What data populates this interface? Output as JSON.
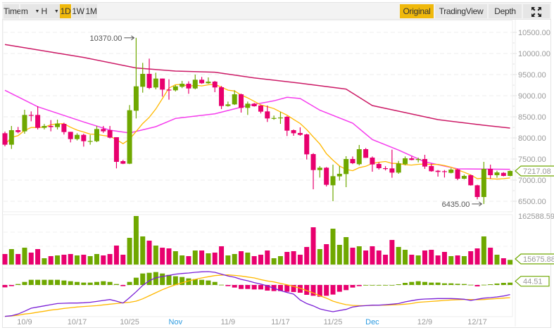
{
  "toolbar": {
    "left": [
      {
        "label": "Time",
        "active": false
      },
      {
        "label": "m",
        "active": false,
        "dropdown": true
      },
      {
        "label": "H",
        "active": false,
        "dropdown": true
      },
      {
        "label": "1D",
        "active": true
      },
      {
        "label": "1W",
        "active": false
      },
      {
        "label": "1M",
        "active": false
      }
    ],
    "right": [
      {
        "label": "Original",
        "active": true
      },
      {
        "label": "TradingView",
        "active": false
      },
      {
        "label": "Depth",
        "active": false
      }
    ],
    "fullscreen_icon": "expand-arrows-icon"
  },
  "colors": {
    "up": "#6fa800",
    "down": "#e8006e",
    "accent": "#f0b90b",
    "ma_short": "#ffb800",
    "ma_mid": "#f53ded",
    "ma_long": "#cc1a66",
    "dif": "#7a1fd6",
    "dea": "#ffb800"
  },
  "chart_data": {
    "type": "candlestick",
    "interval": "1D",
    "price_axis": {
      "ticks": [
        "6500.00",
        "7000.00",
        "7500.00",
        "8000.00",
        "8500.00",
        "9000.00",
        "9500.00",
        "10000.00",
        "10500.00"
      ],
      "range": [
        6300,
        10560
      ]
    },
    "x_labels": [
      {
        "label": "10/9",
        "index": 3,
        "month": false
      },
      {
        "label": "10/17",
        "index": 11,
        "month": false
      },
      {
        "label": "10/25",
        "index": 19,
        "month": false
      },
      {
        "label": "Nov",
        "index": 26,
        "month": true
      },
      {
        "label": "11/9",
        "index": 34,
        "month": false
      },
      {
        "label": "11/17",
        "index": 42,
        "month": false
      },
      {
        "label": "11/25",
        "index": 50,
        "month": false
      },
      {
        "label": "Dec",
        "index": 56,
        "month": true
      },
      {
        "label": "12/9",
        "index": 64,
        "month": false
      },
      {
        "label": "12/17",
        "index": 72,
        "month": false
      }
    ],
    "ohlc": [
      [
        8111,
        8150,
        7800,
        7839
      ],
      [
        7839,
        8283,
        7739,
        8183
      ],
      [
        8183,
        8260,
        8110,
        8139
      ],
      [
        8156,
        8667,
        8100,
        8544
      ],
      [
        8544,
        8628,
        8394,
        8540
      ],
      [
        8544,
        8750,
        8200,
        8239
      ],
      [
        8239,
        8330,
        8200,
        8283
      ],
      [
        8283,
        8422,
        8156,
        8256
      ],
      [
        8256,
        8433,
        8200,
        8339
      ],
      [
        8333,
        8360,
        8080,
        8139
      ],
      [
        8144,
        8144,
        7894,
        7972
      ],
      [
        7972,
        8110,
        7940,
        8072
      ],
      [
        8072,
        8100,
        7794,
        7922
      ],
      [
        7922,
        8072,
        7839,
        7928
      ],
      [
        7922,
        8283,
        7900,
        8211
      ],
      [
        8211,
        8283,
        8120,
        8156
      ],
      [
        8183,
        8283,
        7989,
        8006
      ],
      [
        8017,
        8017,
        7278,
        7433
      ],
      [
        7450,
        7480,
        7380,
        7389
      ],
      [
        7389,
        8778,
        7380,
        8656
      ],
      [
        8644,
        10370,
        8461,
        9222
      ],
      [
        9211,
        9778,
        9072,
        9517
      ],
      [
        9517,
        9878,
        9156,
        9183
      ],
      [
        9194,
        9544,
        9150,
        9406
      ],
      [
        9406,
        9406,
        8978,
        9144
      ],
      [
        9144,
        9389,
        8906,
        9128
      ],
      [
        9128,
        9250,
        9100,
        9222
      ],
      [
        9211,
        9350,
        9180,
        9283
      ],
      [
        9283,
        9340,
        9045,
        9172
      ],
      [
        9172,
        9500,
        9150,
        9378
      ],
      [
        9378,
        9445,
        9280,
        9295
      ],
      [
        9295,
        9433,
        9280,
        9333
      ],
      [
        9333,
        9350,
        9083,
        9195
      ],
      [
        9200,
        9230,
        8683,
        8756
      ],
      [
        8756,
        8860,
        8740,
        8794
      ],
      [
        8794,
        9128,
        8780,
        9033
      ],
      [
        9033,
        9050,
        8600,
        8711
      ],
      [
        8711,
        8860,
        8545,
        8811
      ],
      [
        8811,
        8830,
        8740,
        8750
      ],
      [
        8767,
        8780,
        8580,
        8622
      ],
      [
        8628,
        8767,
        8378,
        8461
      ],
      [
        8461,
        8530,
        8430,
        8472
      ],
      [
        8472,
        8617,
        8333,
        8483
      ],
      [
        8500,
        8520,
        8045,
        8172
      ],
      [
        8183,
        8200,
        8050,
        8111
      ],
      [
        8117,
        8250,
        8050,
        8072
      ],
      [
        8083,
        8100,
        7489,
        7611
      ],
      [
        7617,
        7640,
        6783,
        7239
      ],
      [
        7239,
        7333,
        7060,
        7294
      ],
      [
        7294,
        7310,
        6850,
        6889
      ],
      [
        6878,
        7367,
        6500,
        7094
      ],
      [
        7089,
        7333,
        6989,
        7150
      ],
      [
        7144,
        7567,
        6833,
        7500
      ],
      [
        7500,
        7560,
        7380,
        7400
      ],
      [
        7378,
        7833,
        7350,
        7733
      ],
      [
        7733,
        7760,
        7528,
        7528
      ],
      [
        7533,
        7560,
        7200,
        7372
      ],
      [
        7383,
        7420,
        7250,
        7283
      ],
      [
        7283,
        7330,
        7230,
        7278
      ],
      [
        7278,
        7722,
        7056,
        7178
      ],
      [
        7178,
        7456,
        7150,
        7394
      ],
      [
        7378,
        7560,
        7350,
        7517
      ],
      [
        7517,
        7560,
        7470,
        7478
      ],
      [
        7478,
        7530,
        7420,
        7500
      ],
      [
        7500,
        7600,
        7267,
        7322
      ],
      [
        7333,
        7389,
        7200,
        7211
      ],
      [
        7222,
        7240,
        7083,
        7194
      ],
      [
        7211,
        7240,
        7061,
        7194
      ],
      [
        7172,
        7280,
        7160,
        7250
      ],
      [
        7250,
        7270,
        7000,
        7033
      ],
      [
        7033,
        7130,
        7020,
        7100
      ],
      [
        7117,
        7130,
        6870,
        6878
      ],
      [
        6878,
        6890,
        6544,
        6600
      ],
      [
        6600,
        7433,
        6435,
        7267
      ],
      [
        7267,
        7367,
        7033,
        7117
      ],
      [
        7117,
        7222,
        7056,
        7183
      ],
      [
        7172,
        7190,
        7090,
        7100
      ],
      [
        7100,
        7230,
        7090,
        7217.08
      ]
    ],
    "ma_mid": [
      [
        0,
        9128
      ],
      [
        5,
        8739
      ],
      [
        12,
        8378
      ],
      [
        16,
        8183
      ],
      [
        19,
        8117
      ],
      [
        23,
        8267
      ],
      [
        26,
        8461
      ],
      [
        32,
        8572
      ],
      [
        37,
        8767
      ],
      [
        41,
        8878
      ],
      [
        43,
        8961
      ],
      [
        45,
        8933
      ],
      [
        48,
        8656
      ],
      [
        53,
        8350
      ],
      [
        56,
        7961
      ],
      [
        60,
        7711
      ],
      [
        64,
        7433
      ],
      [
        69,
        7267
      ],
      [
        77,
        7256
      ]
    ],
    "ma_long": [
      [
        0,
        10211
      ],
      [
        12,
        9906
      ],
      [
        20,
        9656
      ],
      [
        26,
        9583
      ],
      [
        32,
        9556
      ],
      [
        38,
        9422
      ],
      [
        45,
        9295
      ],
      [
        52,
        9156
      ],
      [
        56,
        8767
      ],
      [
        60,
        8633
      ],
      [
        66,
        8433
      ],
      [
        73,
        8300
      ],
      [
        77,
        8233
      ]
    ],
    "annotations": {
      "high_label": "10370.00",
      "high_index": 20,
      "high_value": 10370,
      "low_label": "6435.00",
      "low_index": 73,
      "low_value": 6435
    },
    "last_price_label": "7217.08",
    "volume": {
      "max_label": "162588.59",
      "last_label": "15675.88",
      "values": [
        35345,
        51840,
        35345,
        56552,
        40058,
        51840,
        21207,
        28276,
        30633,
        32989,
        35345,
        30633,
        32989,
        28276,
        35345,
        30633,
        35345,
        63621,
        32989,
        89541,
        162588.59,
        94254,
        80116,
        63621,
        56552,
        54196,
        44771,
        30633,
        28276,
        47127,
        47127,
        37702,
        40058,
        61265,
        30633,
        35345,
        44771,
        40058,
        28276,
        32989,
        47127,
        21207,
        28276,
        42414,
        44771,
        32989,
        58909,
        124887,
        51840,
        68334,
        120174,
        65978,
        91898,
        56552,
        61265,
        47127,
        61265,
        47127,
        32989,
        82472,
        58909,
        49484,
        32989,
        30633,
        47127,
        49484,
        30633,
        42414,
        28276,
        30633,
        28276,
        44771,
        54196,
        94254,
        56552,
        32989,
        21207,
        15675.88
      ]
    },
    "macd": {
      "last_label": "44.51",
      "hist": [
        -45,
        -22,
        18,
        58,
        98,
        98,
        98,
        98,
        98,
        85,
        71,
        58,
        45,
        45,
        58,
        71,
        58,
        18,
        -22,
        58,
        138,
        218,
        231,
        245,
        218,
        191,
        165,
        151,
        125,
        111,
        98,
        85,
        58,
        4,
        -22,
        -49,
        -76,
        -76,
        -85,
        -85,
        -107,
        -116,
        -116,
        -129,
        -134,
        -147,
        -187,
        -205,
        -223,
        -205,
        -182,
        -129,
        -98,
        -49,
        -22,
        0,
        0,
        0,
        0,
        0,
        13,
        40,
        58,
        71,
        58,
        45,
        45,
        31,
        31,
        22,
        18,
        4,
        -27,
        4,
        13,
        27,
        40,
        44.51
      ],
      "dif": [
        -596,
        -583,
        -552,
        -498,
        -441,
        -418,
        -396,
        -374,
        -352,
        -347,
        -343,
        -343,
        -338,
        -329,
        -312,
        -294,
        -276,
        -307,
        -343,
        -240,
        -129,
        -9,
        80,
        138,
        160,
        182,
        205,
        218,
        227,
        240,
        249,
        254,
        240,
        205,
        169,
        147,
        107,
        80,
        45,
        18,
        -18,
        -62,
        -107,
        -142,
        -174,
        -285,
        -352,
        -396,
        -454,
        -485,
        -507,
        -485,
        -463,
        -418,
        -401,
        -392,
        -383,
        -383,
        -374,
        -365,
        -352,
        -320,
        -298,
        -276,
        -267,
        -263,
        -258,
        -258,
        -258,
        -263,
        -271,
        -294,
        -271,
        -249,
        -240,
        -227,
        -209,
        -182
      ],
      "dea": [
        -596,
        -587,
        -574,
        -552,
        -538,
        -516,
        -498,
        -476,
        -463,
        -445,
        -432,
        -418,
        -409,
        -401,
        -392,
        -378,
        -365,
        -352,
        -338,
        -329,
        -307,
        -263,
        -205,
        -147,
        -89,
        -40,
        4,
        40,
        76,
        107,
        134,
        156,
        178,
        187,
        191,
        182,
        169,
        151,
        134,
        102,
        76,
        58,
        31,
        4,
        -27,
        -62,
        -107,
        -151,
        -205,
        -249,
        -307,
        -343,
        -374,
        -387,
        -392,
        -392,
        -387,
        -383,
        -383,
        -378,
        -374,
        -365,
        -352,
        -329,
        -320,
        -312,
        -303,
        -294,
        -285,
        -280,
        -276,
        -276,
        -280,
        -276,
        -267,
        -258,
        -249,
        -240
      ]
    }
  }
}
